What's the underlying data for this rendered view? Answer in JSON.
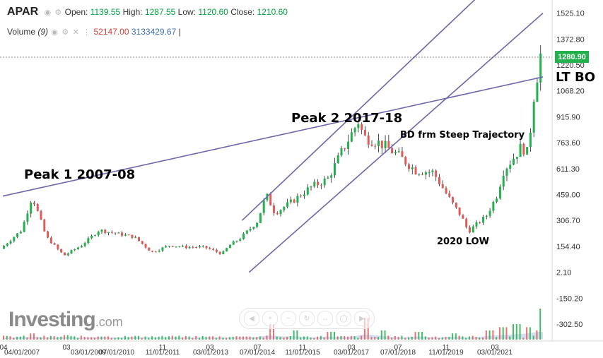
{
  "header": {
    "symbol": "APAR",
    "open_label": "Open:",
    "open": "1139.55",
    "high_label": "High:",
    "high": "1287.55",
    "low_label": "Low:",
    "low": "1120.60",
    "close_label": "Close:",
    "close": "1210.60",
    "volume_label": "Volume",
    "volume_period": "(9)",
    "volume_value": "52147.00",
    "volume_ma": "3133429.67",
    "volume_sep": "|"
  },
  "logo": {
    "main": "Investing",
    "suffix": ".com"
  },
  "current_price_tag": "1280.90",
  "colors": {
    "up": "#22b14c",
    "down": "#e05a5a",
    "trendline": "#6d67ab",
    "volume": "#9db8e0"
  },
  "navigation_icons": [
    "scroll-left-icon",
    "zoom-in-icon",
    "zoom-out-icon",
    "reset-icon",
    "fit-icon",
    "zoom-reset-icon",
    "scroll-right-icon"
  ],
  "chart_data": {
    "type": "line",
    "subtype": "candlestick",
    "y_axis_ticks": [
      "1525.10",
      "1372.80",
      "1220.50",
      "1068.20",
      "915.90",
      "763.60",
      "611.30",
      "459.00",
      "306.70",
      "154.40",
      "2.10",
      "-150.20",
      "-302.50"
    ],
    "ylim": [
      -370,
      1620
    ],
    "x_axis_labels": [
      "04",
      "04/01/2007",
      "03",
      "03/01/2009",
      "07/01/2010",
      "11",
      "11/01/2011",
      "03",
      "03/01/2013",
      "07",
      "07/01/2014",
      "11",
      "11/01/2015",
      "03",
      "03/01/2017",
      "07",
      "07/01/2018",
      "11",
      "11/01/2019",
      "03",
      "03/01/2021"
    ],
    "series": [
      {
        "x": [
          2006.7,
          2007.3,
          2007.6,
          2008.0,
          2008.5,
          2009.0,
          2009.5,
          2010.0,
          2010.5,
          2011.0,
          2011.5,
          2012.0,
          2012.5,
          2013.0,
          2013.2,
          2013.5,
          2014.0,
          2014.25,
          2014.5,
          2015.0,
          2015.5,
          2016.0,
          2016.5,
          2016.9,
          2017.0,
          2017.5,
          2018.0,
          2018.5,
          2019.0,
          2019.5,
          2019.8,
          2020.0,
          2020.2,
          2020.5,
          2020.8,
          2021.0,
          2021.3,
          2021.5,
          2021.7,
          2021.83,
          2021.9,
          2022.0,
          2022.02,
          2022.05
        ],
        "values": [
          140,
          250,
          450,
          210,
          100,
          160,
          250,
          230,
          210,
          120,
          160,
          150,
          150,
          110,
          160,
          200,
          300,
          460,
          350,
          420,
          500,
          550,
          750,
          900,
          800,
          760,
          690,
          600,
          590,
          420,
          330,
          240,
          280,
          330,
          450,
          600,
          680,
          740,
          700,
          1000,
          1100,
          1210,
          1250,
          1281
        ]
      }
    ],
    "volume": {
      "x": [
        2007.5,
        2008.5,
        2009.5,
        2010.5,
        2011.5,
        2012.5,
        2013.5,
        2014.3,
        2015.0,
        2016.0,
        2017.0,
        2017.5,
        2018.5,
        2019.5,
        2020.5,
        2020.9,
        2021.3,
        2021.6,
        2021.9,
        2022.05
      ],
      "values": [
        0.2,
        0.15,
        0.1,
        0.12,
        0.1,
        0.08,
        0.1,
        0.5,
        0.3,
        0.25,
        0.7,
        0.3,
        0.25,
        0.2,
        0.3,
        0.4,
        0.5,
        0.4,
        0.3,
        1.0
      ]
    },
    "annotations": [
      "Peak 1 2007-08",
      "Peak 2 2017-18",
      "BD frm Steep Trajectory",
      "2020 LOW",
      "LT BO"
    ],
    "trendlines": [
      {
        "name": "peak-line",
        "points": [
          [
            2006.7,
            450
          ],
          [
            2022.05,
            1150
          ]
        ]
      },
      {
        "name": "channel-upper",
        "points": [
          [
            2013.5,
            306.7
          ],
          [
            2020.5,
            1680
          ]
        ]
      },
      {
        "name": "channel-lower",
        "points": [
          [
            2013.7,
            2.1
          ],
          [
            2022.05,
            1525
          ]
        ]
      }
    ],
    "grid": false,
    "legend": "none"
  }
}
